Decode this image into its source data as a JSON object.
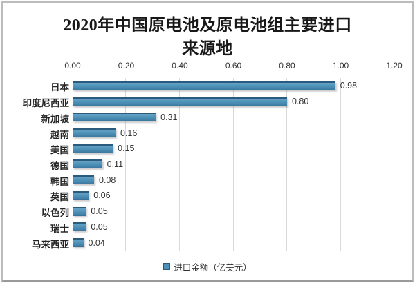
{
  "page": {
    "background_color": "#ffffff",
    "frame_border_color": "#bcbcbc",
    "frame_bottom_border_color": "#9a9a9a"
  },
  "chart_data": {
    "type": "bar",
    "orientation": "horizontal",
    "title": "2020年中国原电池及原电池组主要进口来源地",
    "title_lines": [
      "2020年中国原电池及原电池组主要进口",
      "来源地"
    ],
    "categories": [
      "日本",
      "印度尼西亚",
      "新加坡",
      "越南",
      "美国",
      "德国",
      "韩国",
      "英国",
      "以色列",
      "瑞士",
      "马来西亚"
    ],
    "values": [
      0.98,
      0.8,
      0.31,
      0.16,
      0.15,
      0.11,
      0.08,
      0.06,
      0.05,
      0.05,
      0.04
    ],
    "value_labels": [
      "0.98",
      "0.80",
      "0.31",
      "0.16",
      "0.15",
      "0.11",
      "0.08",
      "0.06",
      "0.05",
      "0.05",
      "0.04"
    ],
    "x_ticks": [
      "0.00",
      "0.20",
      "0.40",
      "0.60",
      "0.80",
      "1.00",
      "1.20"
    ],
    "xlim": [
      0,
      1.2
    ],
    "x_axis_position": "top",
    "grid": "vertical",
    "legend": "进口金额（亿美元）",
    "legend_position": "bottom",
    "bar_color": "#4d8fb5",
    "bar_edge_color": "#2b5b7c",
    "gridline_color": "#d9d9d9",
    "text_color": "#333333",
    "title_color": "#181818"
  }
}
